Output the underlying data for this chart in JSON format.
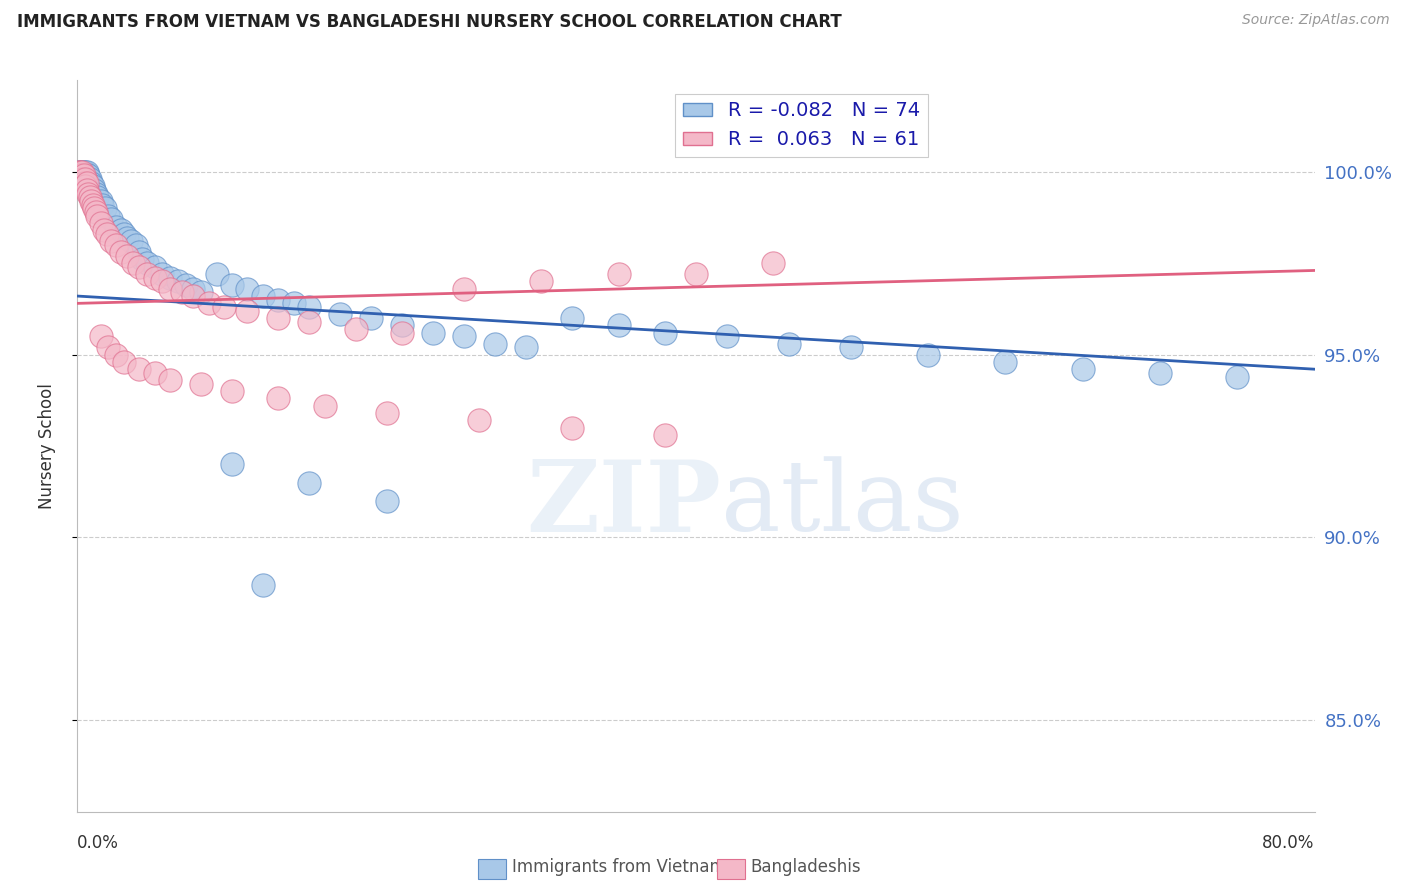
{
  "title": "IMMIGRANTS FROM VIETNAM VS BANGLADESHI NURSERY SCHOOL CORRELATION CHART",
  "source": "Source: ZipAtlas.com",
  "ylabel": "Nursery School",
  "legend_blue_label": "R = -0.082   N = 74",
  "legend_pink_label": "R =  0.063   N = 61",
  "legend_label1": "Immigrants from Vietnam",
  "legend_label2": "Bangladeshis",
  "ytick_labels": [
    "100.0%",
    "95.0%",
    "90.0%",
    "85.0%"
  ],
  "ytick_values": [
    1.0,
    0.95,
    0.9,
    0.85
  ],
  "xlim": [
    0.0,
    0.8
  ],
  "ylim": [
    0.825,
    1.025
  ],
  "blue_scatter_color": "#a8c8e8",
  "blue_edge_color": "#6090c8",
  "pink_scatter_color": "#f4b8c8",
  "pink_edge_color": "#e07090",
  "blue_line_color": "#3060b0",
  "pink_line_color": "#e06080",
  "background_color": "#ffffff",
  "grid_color": "#cccccc",
  "blue_trend_x0": 0.0,
  "blue_trend_y0": 0.966,
  "blue_trend_x1": 0.8,
  "blue_trend_y1": 0.946,
  "pink_trend_x0": 0.0,
  "pink_trend_y0": 0.964,
  "pink_trend_x1": 0.8,
  "pink_trend_y1": 0.973,
  "blue_x": [
    0.001,
    0.001,
    0.001,
    0.002,
    0.002,
    0.002,
    0.003,
    0.003,
    0.003,
    0.004,
    0.004,
    0.005,
    0.005,
    0.006,
    0.006,
    0.007,
    0.007,
    0.008,
    0.008,
    0.009,
    0.01,
    0.011,
    0.012,
    0.013,
    0.015,
    0.016,
    0.018,
    0.02,
    0.022,
    0.025,
    0.028,
    0.03,
    0.032,
    0.035,
    0.038,
    0.04,
    0.042,
    0.045,
    0.05,
    0.055,
    0.06,
    0.065,
    0.07,
    0.075,
    0.08,
    0.09,
    0.1,
    0.11,
    0.12,
    0.13,
    0.14,
    0.15,
    0.17,
    0.19,
    0.21,
    0.23,
    0.25,
    0.27,
    0.29,
    0.32,
    0.35,
    0.38,
    0.42,
    0.46,
    0.5,
    0.55,
    0.6,
    0.65,
    0.7,
    0.75,
    0.1,
    0.15,
    0.2,
    0.12
  ],
  "blue_y": [
    1.0,
    0.999,
    0.998,
    1.0,
    0.999,
    0.997,
    1.0,
    0.999,
    0.998,
    1.0,
    0.999,
    1.0,
    0.999,
    1.0,
    0.998,
    0.999,
    0.997,
    0.998,
    0.996,
    0.997,
    0.996,
    0.995,
    0.994,
    0.993,
    0.992,
    0.991,
    0.99,
    0.988,
    0.987,
    0.985,
    0.984,
    0.983,
    0.982,
    0.981,
    0.98,
    0.978,
    0.976,
    0.975,
    0.974,
    0.972,
    0.971,
    0.97,
    0.969,
    0.968,
    0.967,
    0.972,
    0.969,
    0.968,
    0.966,
    0.965,
    0.964,
    0.963,
    0.961,
    0.96,
    0.958,
    0.956,
    0.955,
    0.953,
    0.952,
    0.96,
    0.958,
    0.956,
    0.955,
    0.953,
    0.952,
    0.95,
    0.948,
    0.946,
    0.945,
    0.944,
    0.92,
    0.915,
    0.91,
    0.887
  ],
  "pink_x": [
    0.001,
    0.001,
    0.002,
    0.002,
    0.003,
    0.003,
    0.004,
    0.004,
    0.005,
    0.005,
    0.006,
    0.006,
    0.007,
    0.008,
    0.009,
    0.01,
    0.011,
    0.012,
    0.013,
    0.015,
    0.017,
    0.019,
    0.022,
    0.025,
    0.028,
    0.032,
    0.036,
    0.04,
    0.045,
    0.05,
    0.055,
    0.06,
    0.068,
    0.075,
    0.085,
    0.095,
    0.11,
    0.13,
    0.15,
    0.18,
    0.21,
    0.25,
    0.3,
    0.35,
    0.4,
    0.45,
    0.015,
    0.02,
    0.025,
    0.03,
    0.04,
    0.05,
    0.06,
    0.08,
    0.1,
    0.13,
    0.16,
    0.2,
    0.26,
    0.32,
    0.38
  ],
  "pink_y": [
    1.0,
    0.999,
    1.0,
    0.999,
    1.0,
    0.998,
    0.999,
    0.997,
    0.998,
    0.996,
    0.997,
    0.995,
    0.994,
    0.993,
    0.992,
    0.991,
    0.99,
    0.989,
    0.988,
    0.986,
    0.984,
    0.983,
    0.981,
    0.98,
    0.978,
    0.977,
    0.975,
    0.974,
    0.972,
    0.971,
    0.97,
    0.968,
    0.967,
    0.966,
    0.964,
    0.963,
    0.962,
    0.96,
    0.959,
    0.957,
    0.956,
    0.968,
    0.97,
    0.972,
    0.972,
    0.975,
    0.955,
    0.952,
    0.95,
    0.948,
    0.946,
    0.945,
    0.943,
    0.942,
    0.94,
    0.938,
    0.936,
    0.934,
    0.932,
    0.93,
    0.928
  ]
}
